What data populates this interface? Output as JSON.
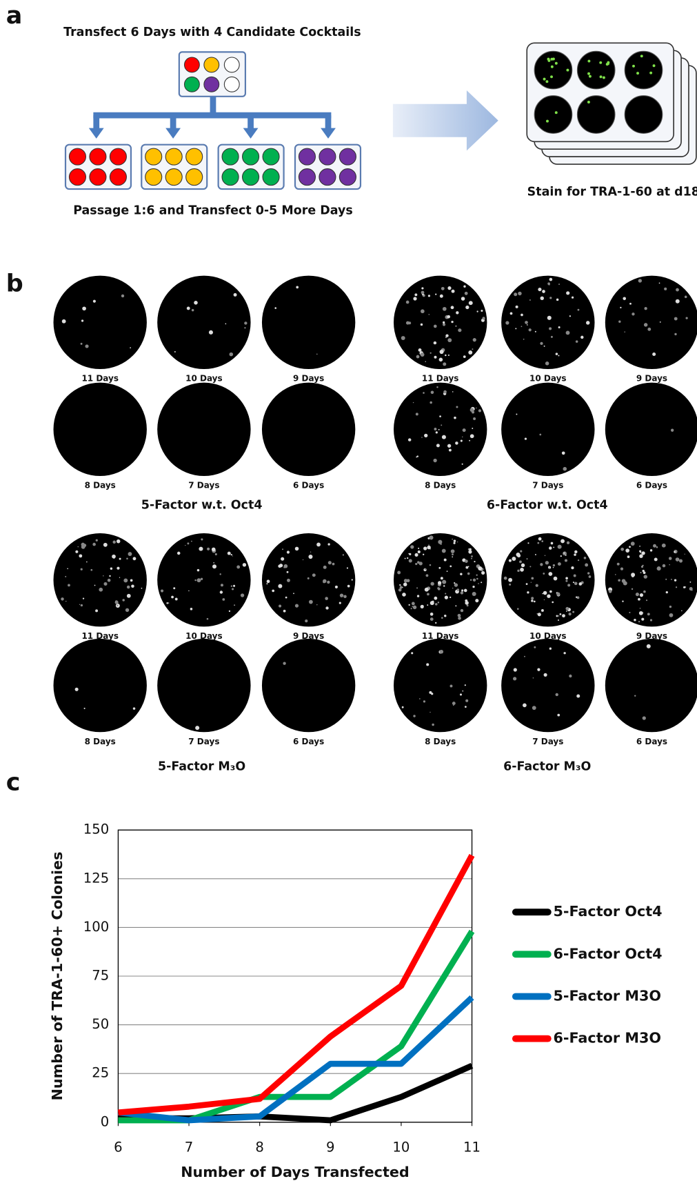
{
  "panel_labels": [
    "a",
    "b",
    "c"
  ],
  "schematic": {
    "title": "Transfect 6 Days with 4 Candidate Cocktails",
    "passage_text": "Passage 1:6 and Transfect 0-5 More Days",
    "stain_text": "Stain for TRA-1-60 at d18"
  },
  "wells": {
    "groups": [
      {
        "title": "5-Factor w.t. Oct4",
        "labels": [
          "11 Days",
          "10 Days",
          "9 Days",
          "8 Days",
          "7 Days",
          "6 Days"
        ]
      },
      {
        "title": "6-Factor w.t. Oct4",
        "labels": [
          "11 Days",
          "10 Days",
          "9 Days",
          "8 Days",
          "7 Days",
          "6 Days"
        ]
      },
      {
        "title": "5-Factor M₃O",
        "labels": [
          "11 Days",
          "10 Days",
          "9 Days",
          "8 Days",
          "7 Days",
          "6 Days"
        ]
      },
      {
        "title": "6-Factor M₃O",
        "labels": [
          "11 Days",
          "10 Days",
          "9 Days",
          "8 Days",
          "7 Days",
          "6 Days"
        ]
      }
    ]
  },
  "chart_data": {
    "type": "line",
    "x_label": "Number of Days Transfected",
    "y_label": "Number of TRA-1-60+ Colonies",
    "x": [
      6,
      7,
      8,
      9,
      10,
      11
    ],
    "series": [
      {
        "name": "5-Factor Oct4",
        "color": "#000000",
        "values": [
          2,
          2,
          3,
          1,
          13,
          29
        ]
      },
      {
        "name": "6-Factor Oct4",
        "color": "#00b050",
        "values": [
          1,
          1,
          13,
          13,
          39,
          98
        ]
      },
      {
        "name": "5-Factor M3O",
        "color": "#0070c0",
        "values": [
          5,
          1,
          3,
          30,
          30,
          64
        ]
      },
      {
        "name": "6-Factor M3O",
        "color": "#ff0000",
        "values": [
          5,
          8,
          12,
          44,
          70,
          137
        ]
      }
    ],
    "xlim": [
      6,
      11
    ],
    "xticks": [
      6,
      7,
      8,
      9,
      10,
      11
    ],
    "ylim": [
      0,
      150
    ],
    "yticks": [
      0,
      25,
      50,
      75,
      100,
      125,
      150
    ],
    "grid": true,
    "legend": "right"
  }
}
